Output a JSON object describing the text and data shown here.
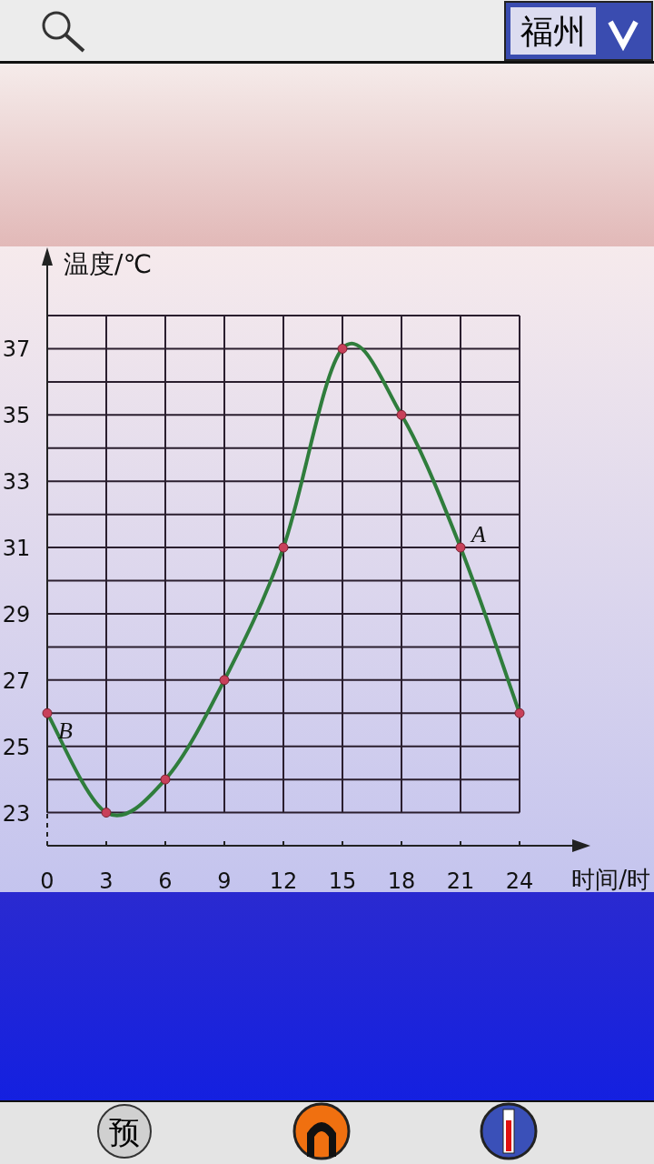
{
  "chart_data": {
    "type": "line",
    "title": "福州",
    "xlabel": "时间/时",
    "ylabel": "温度/℃",
    "x": [
      0,
      3,
      6,
      9,
      12,
      15,
      18,
      21,
      24
    ],
    "series": [
      {
        "color": "#2f7d3c",
        "values": [
          26,
          23,
          24,
          27,
          31,
          37,
          35,
          31,
          26
        ]
      }
    ],
    "xlim": [
      0,
      24
    ],
    "ylim": [
      22,
      38
    ],
    "xticks": [
      0,
      3,
      6,
      9,
      12,
      15,
      18,
      21,
      24
    ],
    "yticks": [
      23,
      25,
      27,
      29,
      31,
      33,
      35,
      37
    ],
    "grid": true,
    "marker": "circle",
    "annotations": [
      {
        "text": "A",
        "x": 21,
        "y": 31
      },
      {
        "text": "B",
        "x": 0,
        "y": 26
      },
      "预"
    ]
  }
}
